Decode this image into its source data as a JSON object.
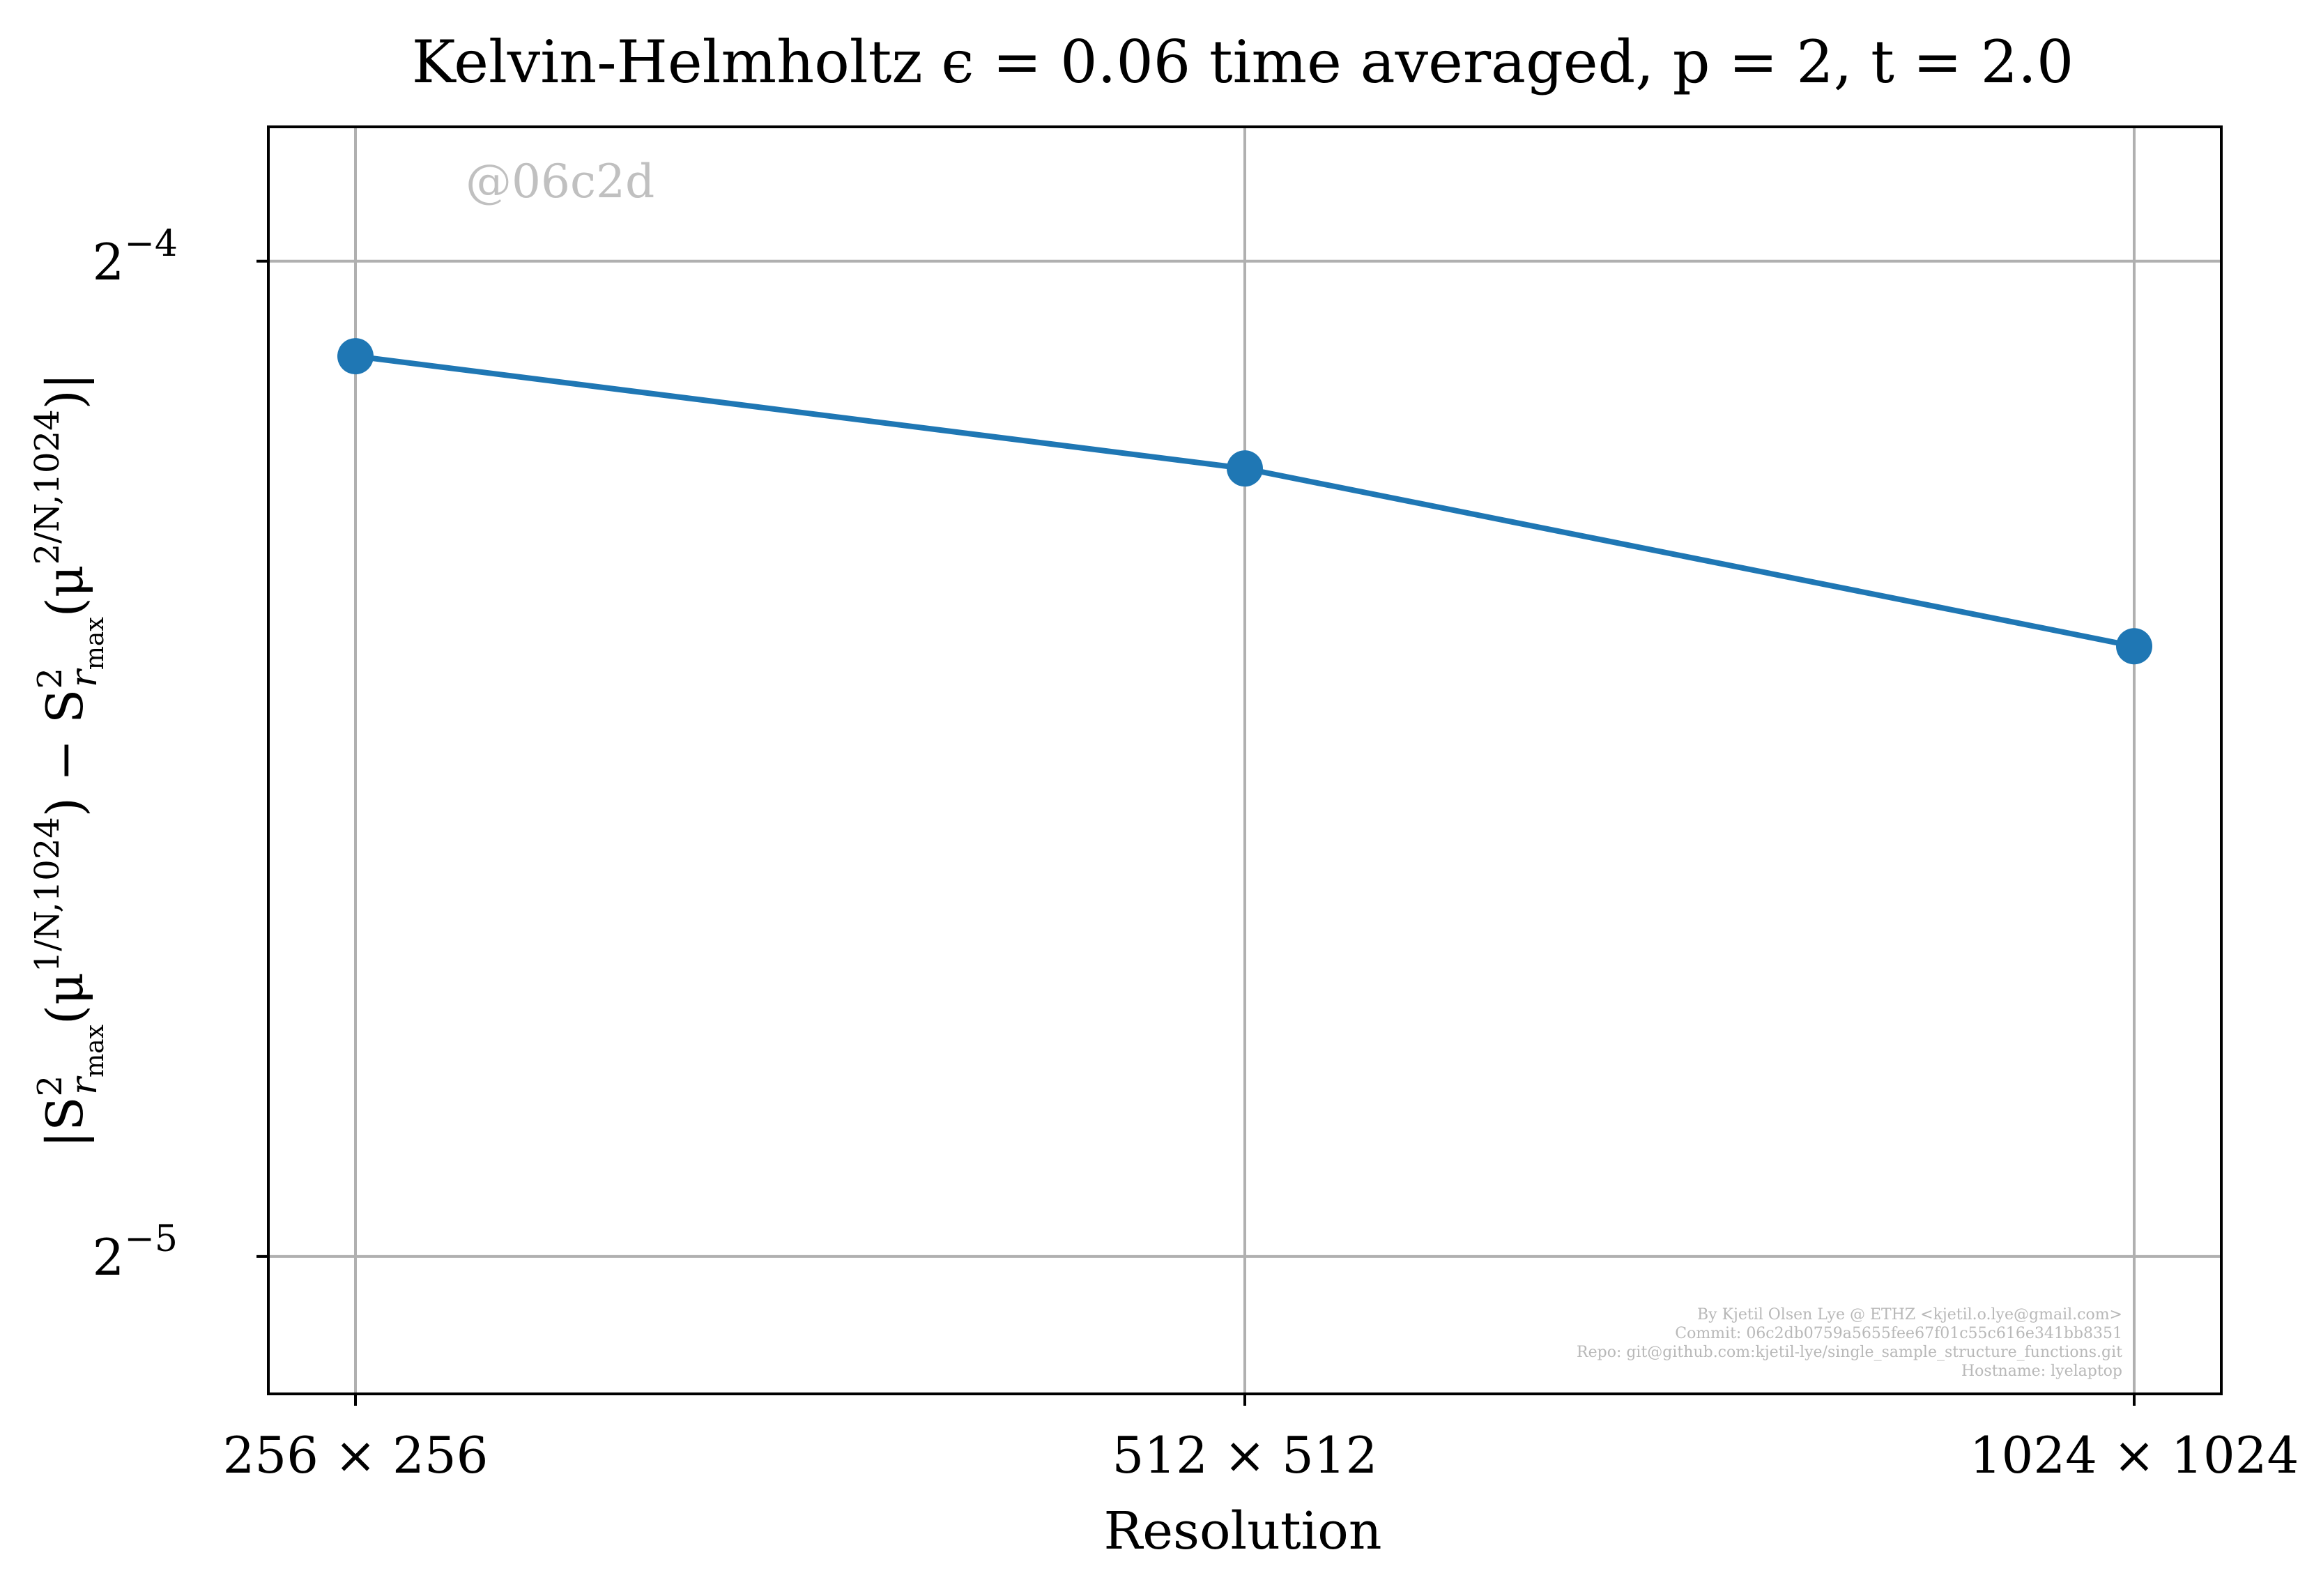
{
  "chart_data": {
    "type": "line",
    "title": "Kelvin-Helmholtz ϵ = 0.06 time averaged, p = 2, t = 2.0",
    "xlabel": "Resolution",
    "ylabel": "|S²_{r_max}(μ^{1/N,1024}) − S²_{r_max}(μ^{2/N,1024})|",
    "ylabel_parts": {
      "left": "|S",
      "sup1": "2",
      "sub1": "r",
      "sub1b": "max",
      "mid1": "(μ",
      "sup2": "1/N,1024",
      "mid2": ") − S",
      "sup3": "2",
      "sub3": "r",
      "sub3b": "max",
      "mid3": "(μ",
      "sup4": "2/N,1024",
      "right": ")|"
    },
    "categories": [
      "256 × 256",
      "512 × 512",
      "1024 × 1024"
    ],
    "x": [
      256,
      512,
      1024
    ],
    "x_scale": "log2",
    "y_scale": "log2",
    "ylim_log2": [
      -5.138,
      -3.865
    ],
    "y_ticks": [
      {
        "base": "2",
        "exp": "−4",
        "value_log2": -4
      },
      {
        "base": "2",
        "exp": "−5",
        "value_log2": -5
      }
    ],
    "series": [
      {
        "values": [
          0.0585,
          0.0541,
          0.0478
        ],
        "color": "#1f77b4"
      }
    ],
    "grid": true,
    "legend": "none",
    "watermark": "@06c2d",
    "credits": [
      "By Kjetil Olsen Lye @ ETHZ <kjetil.o.lye@gmail.com>",
      "Commit: 06c2db0759a5655fee67f01c55c616e341bb8351",
      "Repo: git@github.com:kjetil-lye/single_sample_structure_functions.git",
      "Hostname: lyelaptop"
    ]
  },
  "colors": {
    "line": "#1f77b4",
    "grid": "#b0b0b0",
    "watermark": "#c0c0c0",
    "credits": "#b8b8b8"
  }
}
